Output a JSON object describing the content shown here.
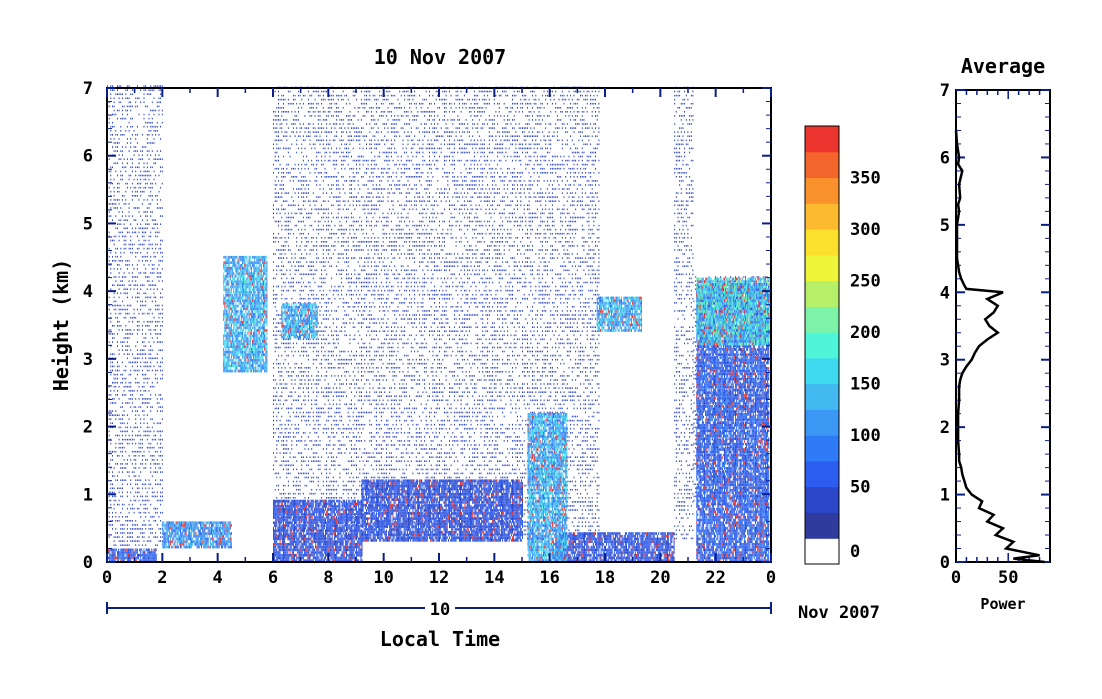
{
  "chart_data": [
    {
      "type": "heatmap",
      "title": "10 Nov 2007",
      "xlabel": "Local Time",
      "ylabel": "Height (km)",
      "xlim": [
        0,
        24
      ],
      "ylim": [
        0,
        7
      ],
      "x_ticks": [
        "0",
        "2",
        "4",
        "6",
        "8",
        "10",
        "12",
        "14",
        "16",
        "18",
        "20",
        "22",
        "0"
      ],
      "y_ticks": [
        "0",
        "1",
        "2",
        "3",
        "4",
        "5",
        "6",
        "7"
      ],
      "date_axis": {
        "day_label": "10",
        "month_label": "Nov 2007"
      },
      "colorbar": {
        "range": [
          0,
          375
        ],
        "tick_labels": [
          "0",
          "50",
          "100",
          "150",
          "200",
          "250",
          "300",
          "350"
        ],
        "tick_values": [
          0,
          50,
          100,
          150,
          200,
          250,
          300,
          350
        ],
        "colors": [
          "#ffffff",
          "#2f3c9e",
          "#2b46c8",
          "#2d5cf0",
          "#2f7af6",
          "#3a98f4",
          "#41b8f0",
          "#3fdaf0",
          "#4ff5d8",
          "#7cf3a6",
          "#b5f068",
          "#eef43a",
          "#fbe12c",
          "#fcbb2e",
          "#f9922c",
          "#f4652c",
          "#ec352e"
        ]
      },
      "layers": [
        {
          "name": "sparse noise",
          "t": [
            0,
            2.0
          ],
          "h": [
            0.2,
            7.0
          ],
          "value": 30
        },
        {
          "name": "sparse noise",
          "t": [
            6.0,
            17.8
          ],
          "h": [
            0.3,
            7.0
          ],
          "value": 30
        },
        {
          "name": "sparse noise",
          "t": [
            20.5,
            21.2
          ],
          "h": [
            0.3,
            7.0
          ],
          "value": 30
        },
        {
          "name": "sparse noise",
          "t": [
            21.2,
            24.0
          ],
          "h": [
            0.8,
            4.2
          ],
          "value": 30
        },
        {
          "name": "boundary layer",
          "t": [
            0,
            1.8
          ],
          "h": [
            0.0,
            0.2
          ],
          "value": 60
        },
        {
          "name": "boundary layer",
          "t": [
            2.0,
            4.5
          ],
          "h": [
            0.2,
            0.6
          ],
          "value": 100
        },
        {
          "name": "boundary layer",
          "t": [
            6.0,
            9.2
          ],
          "h": [
            0.0,
            0.9
          ],
          "value": 50
        },
        {
          "name": "boundary layer",
          "t": [
            9.2,
            15.0
          ],
          "h": [
            0.3,
            1.2
          ],
          "value": 50
        },
        {
          "name": "boundary layer",
          "t": [
            16.2,
            20.5
          ],
          "h": [
            0.0,
            0.4
          ],
          "value": 50
        },
        {
          "name": "fall streak",
          "t": [
            15.2,
            16.6
          ],
          "h": [
            0.0,
            2.2
          ],
          "value": 120
        },
        {
          "name": "fall streak",
          "t": [
            21.3,
            23.9
          ],
          "h": [
            0.0,
            4.1
          ],
          "value": 60
        },
        {
          "name": "cloud layer",
          "t": [
            21.3,
            24.0
          ],
          "h": [
            3.2,
            4.2
          ],
          "value": 150
        },
        {
          "name": "cloud layer",
          "t": [
            4.2,
            5.8
          ],
          "h": [
            2.8,
            4.5
          ],
          "value": 120
        },
        {
          "name": "cloud layer",
          "t": [
            6.3,
            7.6
          ],
          "h": [
            3.3,
            3.8
          ],
          "value": 120
        },
        {
          "name": "cloud layer",
          "t": [
            17.7,
            19.3
          ],
          "h": [
            3.4,
            3.9
          ],
          "value": 120
        }
      ]
    },
    {
      "type": "line",
      "title": "Average",
      "xlabel": "Power",
      "ylabel": "",
      "xlim": [
        0,
        90
      ],
      "ylim": [
        0,
        7
      ],
      "x_ticks": [
        "0",
        "50"
      ],
      "y_ticks": [
        "0",
        "1",
        "2",
        "3",
        "4",
        "5",
        "6",
        "7"
      ],
      "series": [
        {
          "height_km": [
            0.0,
            0.05,
            0.1,
            0.2,
            0.3,
            0.4,
            0.5,
            0.6,
            0.7,
            0.8,
            0.9,
            1.0,
            1.1,
            1.2,
            1.3,
            1.4,
            1.5,
            1.6,
            1.8,
            2.0,
            2.2,
            2.4,
            2.6,
            2.7,
            2.8,
            2.9,
            3.0,
            3.1,
            3.2,
            3.3,
            3.4,
            3.5,
            3.6,
            3.7,
            3.8,
            3.9,
            4.0,
            4.05,
            4.1,
            4.2,
            4.3,
            4.4,
            4.5,
            4.7,
            5.0,
            5.2,
            5.3,
            5.4,
            5.6,
            5.8,
            5.9,
            6.0,
            6.2,
            6.4
          ],
          "power": [
            85,
            55,
            80,
            48,
            55,
            38,
            45,
            30,
            36,
            22,
            25,
            15,
            10,
            8,
            6,
            5,
            3,
            3,
            2,
            2,
            2,
            3,
            3,
            4,
            6,
            10,
            15,
            18,
            22,
            30,
            40,
            32,
            28,
            36,
            40,
            30,
            45,
            10,
            8,
            5,
            3,
            2,
            1,
            1,
            1,
            3,
            2,
            4,
            3,
            6,
            2,
            3,
            1,
            0
          ]
        }
      ]
    }
  ]
}
